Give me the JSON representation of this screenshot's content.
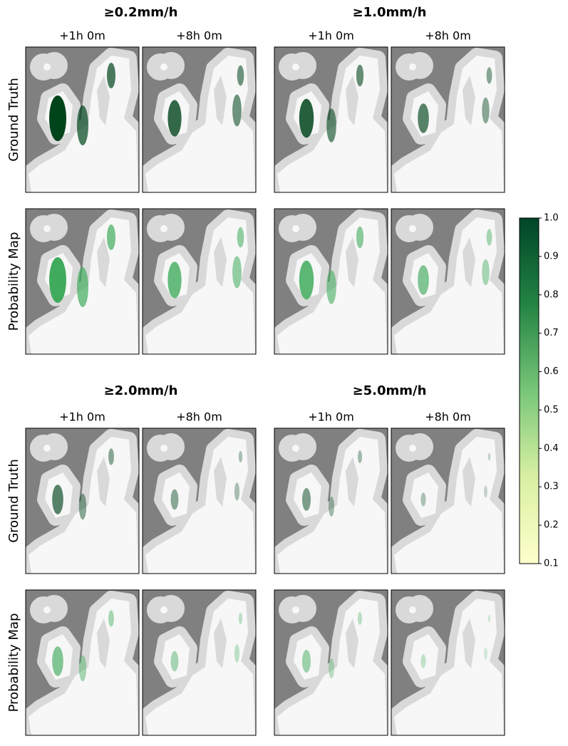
{
  "chart_data": {
    "type": "heatmap",
    "blocks": [
      {
        "rows": [
          "Ground Truth",
          "Probability Map"
        ],
        "groups": [
          {
            "title": "≥0.2mm/h",
            "columns": [
              "+1h 0m",
              "+8h 0m"
            ]
          },
          {
            "title": "≥1.0mm/h",
            "columns": [
              "+1h 0m",
              "+8h 0m"
            ]
          }
        ]
      },
      {
        "rows": [
          "Ground Truth",
          "Probability Map"
        ],
        "groups": [
          {
            "title": "≥2.0mm/h",
            "columns": [
              "+1h 0m",
              "+8h 0m"
            ]
          },
          {
            "title": "≥5.0mm/h",
            "columns": [
              "+1h 0m",
              "+8h 0m"
            ]
          }
        ]
      }
    ],
    "colorbar": {
      "colormap": [
        "#ffffcc",
        "#d9f0a3",
        "#78c679",
        "#238443",
        "#004529"
      ],
      "ylim": [
        0.1,
        {
          "value": 1,
          "label": "1.0"
        }
      ],
      "yticks": [
        0.1,
        0.2,
        0.3,
        0.4,
        0.5,
        0.6,
        0.7,
        0.8,
        0.9,
        {
          "value": 1,
          "label": "1.0"
        }
      ]
    }
  }
}
